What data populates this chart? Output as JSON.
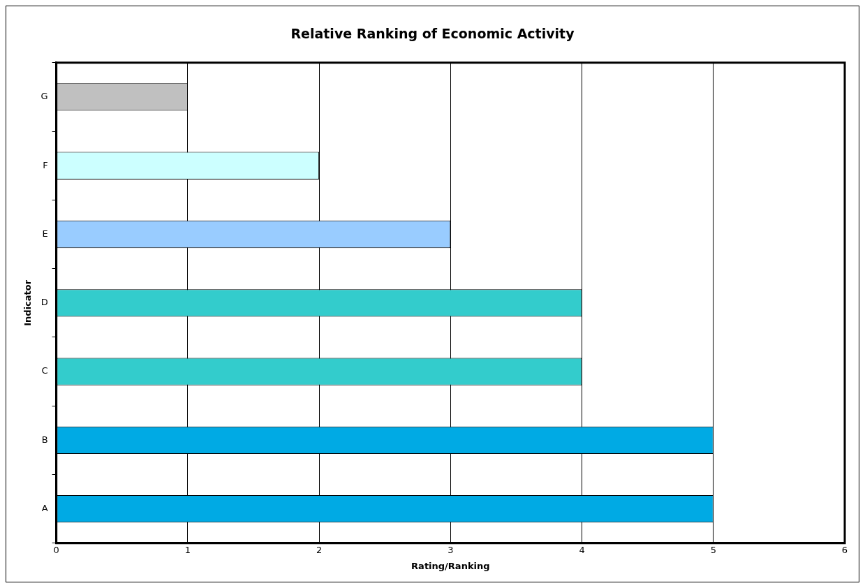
{
  "chart_data": {
    "type": "bar",
    "orientation": "horizontal",
    "title": "Relative Ranking of Economic Activity",
    "xlabel": "Rating/Ranking",
    "ylabel": "Indicator",
    "categories": [
      "G",
      "F",
      "E",
      "D",
      "C",
      "B",
      "A"
    ],
    "values": [
      1,
      2,
      3,
      4,
      4,
      5,
      5
    ],
    "colors": [
      "#c0c0c0",
      "#ccffff",
      "#99ccff",
      "#33cccc",
      "#33cccc",
      "#00aae4",
      "#00aae4"
    ],
    "xlim": [
      0,
      6
    ],
    "xticks": [
      0,
      1,
      2,
      3,
      4,
      5,
      6
    ],
    "grid": "x"
  }
}
